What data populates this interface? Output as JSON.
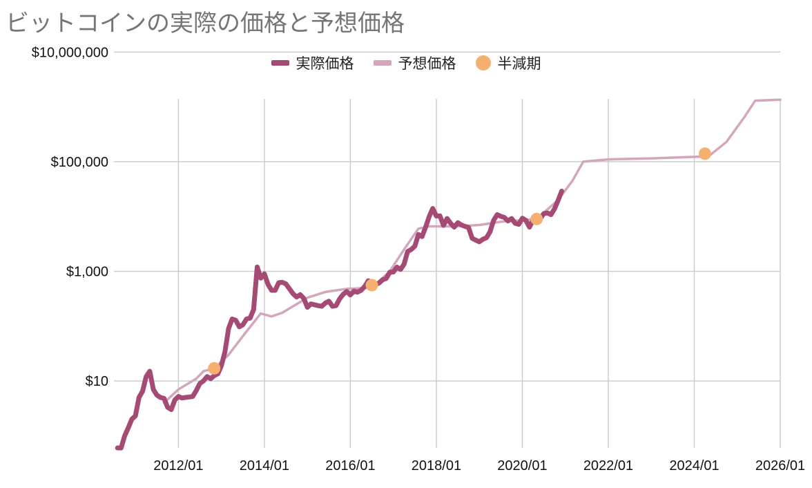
{
  "chart_data": {
    "type": "line",
    "title": "ビットコインの実際の価格と予想価格",
    "legend_position": "top",
    "grid": true,
    "y_scale": "log",
    "ylim": [
      0.6,
      1400000
    ],
    "xlim": [
      "2010-07",
      "2026-01"
    ],
    "x_ticks": [
      "2012/01",
      "2014/01",
      "2016/01",
      "2018/01",
      "2020/01",
      "2022/01",
      "2024/01",
      "2026/01"
    ],
    "y_ticks": [
      {
        "value": 10,
        "label": "$10"
      },
      {
        "value": 1000,
        "label": "$1,000"
      },
      {
        "value": 100000,
        "label": "$100,000"
      },
      {
        "value": 10000000,
        "label": "$10,000,000"
      }
    ],
    "colors": {
      "actual": "#a44a74",
      "forecast": "#d4a6bd",
      "halving": "#f5b06f",
      "grid": "#cccccc"
    },
    "series": [
      {
        "name": "実際価格",
        "points": [
          [
            "2010-08",
            0.6
          ],
          [
            "2010-09",
            0.6
          ],
          [
            "2010-10",
            1.0
          ],
          [
            "2010-11",
            1.4
          ],
          [
            "2010-12",
            2.0
          ],
          [
            "2011-01",
            2.3
          ],
          [
            "2011-02",
            5.0
          ],
          [
            "2011-03",
            6.5
          ],
          [
            "2011-04",
            12.0
          ],
          [
            "2011-05",
            15.0
          ],
          [
            "2011-06",
            7.0
          ],
          [
            "2011-07",
            5.5
          ],
          [
            "2011-08",
            5.0
          ],
          [
            "2011-09",
            4.8
          ],
          [
            "2011-10",
            3.3
          ],
          [
            "2011-11",
            3.0
          ],
          [
            "2011-12",
            4.5
          ],
          [
            "2012-01",
            5.2
          ],
          [
            "2012-02",
            4.9
          ],
          [
            "2012-03",
            5.0
          ],
          [
            "2012-04",
            5.1
          ],
          [
            "2012-05",
            5.2
          ],
          [
            "2012-06",
            6.7
          ],
          [
            "2012-07",
            9.0
          ],
          [
            "2012-08",
            10.0
          ],
          [
            "2012-09",
            12.0
          ],
          [
            "2012-10",
            11.0
          ],
          [
            "2012-11",
            12.5
          ],
          [
            "2012-12",
            13.5
          ],
          [
            "2013-01",
            19.0
          ],
          [
            "2013-02",
            34.0
          ],
          [
            "2013-03",
            90.0
          ],
          [
            "2013-04",
            135.0
          ],
          [
            "2013-05",
            128.0
          ],
          [
            "2013-06",
            97.0
          ],
          [
            "2013-07",
            106.0
          ],
          [
            "2013-08",
            135.0
          ],
          [
            "2013-09",
            140.0
          ],
          [
            "2013-10",
            200.0
          ],
          [
            "2013-11",
            1200.0
          ],
          [
            "2013-12",
            750.0
          ],
          [
            "2014-01",
            900.0
          ],
          [
            "2014-02",
            580.0
          ],
          [
            "2014-03",
            450.0
          ],
          [
            "2014-04",
            450.0
          ],
          [
            "2014-05",
            620.0
          ],
          [
            "2014-06",
            630.0
          ],
          [
            "2014-07",
            590.0
          ],
          [
            "2014-08",
            480.0
          ],
          [
            "2014-09",
            390.0
          ],
          [
            "2014-10",
            340.0
          ],
          [
            "2014-11",
            375.0
          ],
          [
            "2014-12",
            320.0
          ],
          [
            "2015-01",
            220.0
          ],
          [
            "2015-02",
            255.0
          ],
          [
            "2015-03",
            245.0
          ],
          [
            "2015-04",
            236.0
          ],
          [
            "2015-05",
            230.0
          ],
          [
            "2015-06",
            263.0
          ],
          [
            "2015-07",
            285.0
          ],
          [
            "2015-08",
            230.0
          ],
          [
            "2015-09",
            236.0
          ],
          [
            "2015-10",
            315.0
          ],
          [
            "2015-11",
            380.0
          ],
          [
            "2015-12",
            430.0
          ],
          [
            "2016-01",
            370.0
          ],
          [
            "2016-02",
            435.0
          ],
          [
            "2016-03",
            416.0
          ],
          [
            "2016-04",
            450.0
          ],
          [
            "2016-05",
            530.0
          ],
          [
            "2016-06",
            673.0
          ],
          [
            "2016-07",
            625.0
          ],
          [
            "2016-08",
            575.0
          ],
          [
            "2016-09",
            610.0
          ],
          [
            "2016-10",
            700.0
          ],
          [
            "2016-11",
            740.0
          ],
          [
            "2016-12",
            960.0
          ],
          [
            "2017-01",
            970.0
          ],
          [
            "2017-02",
            1190.0
          ],
          [
            "2017-03",
            1080.0
          ],
          [
            "2017-04",
            1350.0
          ],
          [
            "2017-05",
            2300.0
          ],
          [
            "2017-06",
            2500.0
          ],
          [
            "2017-07",
            2875.0
          ],
          [
            "2017-08",
            4700.0
          ],
          [
            "2017-09",
            4300.0
          ],
          [
            "2017-10",
            6400.0
          ],
          [
            "2017-11",
            10000.0
          ],
          [
            "2017-12",
            14000.0
          ],
          [
            "2018-01",
            10200.0
          ],
          [
            "2018-02",
            10300.0
          ],
          [
            "2018-03",
            6900.0
          ],
          [
            "2018-04",
            9200.0
          ],
          [
            "2018-05",
            7500.0
          ],
          [
            "2018-06",
            6400.0
          ],
          [
            "2018-07",
            7700.0
          ],
          [
            "2018-08",
            7000.0
          ],
          [
            "2018-09",
            6600.0
          ],
          [
            "2018-10",
            6300.0
          ],
          [
            "2018-11",
            4000.0
          ],
          [
            "2018-12",
            3700.0
          ],
          [
            "2019-01",
            3450.0
          ],
          [
            "2019-02",
            3850.0
          ],
          [
            "2019-03",
            4100.0
          ],
          [
            "2019-04",
            5300.0
          ],
          [
            "2019-05",
            8500.0
          ],
          [
            "2019-06",
            10800.0
          ],
          [
            "2019-07",
            10100.0
          ],
          [
            "2019-08",
            9600.0
          ],
          [
            "2019-09",
            8300.0
          ],
          [
            "2019-10",
            9200.0
          ],
          [
            "2019-11",
            7500.0
          ],
          [
            "2019-12",
            7200.0
          ],
          [
            "2020-01",
            9300.0
          ],
          [
            "2020-02",
            8500.0
          ],
          [
            "2020-03",
            6400.0
          ],
          [
            "2020-04",
            8600.0
          ],
          [
            "2020-05",
            9400.0
          ],
          [
            "2020-06",
            9100.0
          ],
          [
            "2020-07",
            11300.0
          ],
          [
            "2020-08",
            11600.0
          ],
          [
            "2020-09",
            10800.0
          ],
          [
            "2020-10",
            13800.0
          ],
          [
            "2020-11",
            19700.0
          ],
          [
            "2020-12",
            29000.0
          ]
        ]
      },
      {
        "name": "予想価格",
        "points": [
          [
            "2011-09",
            4.0
          ],
          [
            "2012-01",
            7.0
          ],
          [
            "2012-06",
            11.0
          ],
          [
            "2012-08",
            15.0
          ],
          [
            "2012-11",
            17.0
          ],
          [
            "2013-03",
            30.0
          ],
          [
            "2013-08",
            80.0
          ],
          [
            "2013-12",
            170.0
          ],
          [
            "2014-03",
            150.0
          ],
          [
            "2014-06",
            175.0
          ],
          [
            "2014-09",
            230.0
          ],
          [
            "2015-01",
            330.0
          ],
          [
            "2015-06",
            420.0
          ],
          [
            "2015-12",
            480.0
          ],
          [
            "2016-07",
            500.0
          ],
          [
            "2016-12",
            1000.0
          ],
          [
            "2017-04",
            2500.0
          ],
          [
            "2017-08",
            6000.0
          ],
          [
            "2017-11",
            6600.0
          ],
          [
            "2018-06",
            6600.0
          ],
          [
            "2019-01",
            7000.0
          ],
          [
            "2019-07",
            8000.0
          ],
          [
            "2020-05",
            9000.0
          ],
          [
            "2020-11",
            20000.0
          ],
          [
            "2021-03",
            45000.0
          ],
          [
            "2021-06",
            100000.0
          ],
          [
            "2022-01",
            110000.0
          ],
          [
            "2023-01",
            115000.0
          ],
          [
            "2024-05",
            125000.0
          ],
          [
            "2024-10",
            230000.0
          ],
          [
            "2025-03",
            650000.0
          ],
          [
            "2025-06",
            1300000.0
          ],
          [
            "2026-01",
            1350000.0
          ]
        ]
      }
    ],
    "annotations": {
      "name": "半減期",
      "points": [
        [
          "2012-11",
          17.0
        ],
        [
          "2016-07",
          560.0
        ],
        [
          "2020-05",
          9000.0
        ],
        [
          "2024-04",
          140000.0
        ]
      ]
    }
  }
}
